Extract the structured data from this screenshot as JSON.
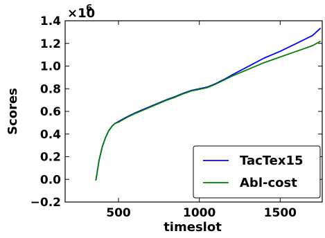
{
  "chart_data": {
    "type": "line",
    "xlabel": "timeslot",
    "ylabel": "Scores",
    "y_multiplier_label": "×10",
    "y_multiplier_exp": "6",
    "xlim": [
      170,
      1760
    ],
    "ylim": [
      -0.2,
      1.4
    ],
    "x_ticks": [
      500,
      1000,
      1500
    ],
    "x_tick_labels": [
      "500",
      "1000",
      "1500"
    ],
    "y_ticks": [
      -0.2,
      0.0,
      0.2,
      0.4,
      0.6,
      0.8,
      1.0,
      1.2,
      1.4
    ],
    "y_tick_labels": [
      "−0.2",
      "0.0",
      "0.2",
      "0.4",
      "0.6",
      "0.8",
      "1.0",
      "1.2",
      "1.4"
    ],
    "grid": false,
    "legend_position": "bottom-right",
    "series": [
      {
        "name": "TacTex15",
        "color": "#0000ff",
        "x": [
          360,
          370,
          380,
          400,
          420,
          440,
          460,
          480,
          500,
          550,
          600,
          650,
          700,
          750,
          800,
          850,
          900,
          950,
          1000,
          1050,
          1100,
          1150,
          1200,
          1300,
          1400,
          1500,
          1600,
          1700,
          1750
        ],
        "y": [
          -0.01,
          0.08,
          0.17,
          0.29,
          0.37,
          0.43,
          0.47,
          0.495,
          0.51,
          0.55,
          0.585,
          0.615,
          0.645,
          0.675,
          0.705,
          0.73,
          0.76,
          0.785,
          0.8,
          0.815,
          0.845,
          0.88,
          0.92,
          0.995,
          1.07,
          1.13,
          1.2,
          1.27,
          1.335
        ]
      },
      {
        "name": "Abl-cost",
        "color": "#008000",
        "x": [
          360,
          370,
          380,
          400,
          420,
          440,
          460,
          480,
          500,
          550,
          600,
          650,
          700,
          750,
          800,
          850,
          900,
          950,
          1000,
          1050,
          1100,
          1150,
          1200,
          1300,
          1400,
          1500,
          1600,
          1700,
          1750
        ],
        "y": [
          -0.01,
          0.08,
          0.17,
          0.29,
          0.37,
          0.43,
          0.47,
          0.495,
          0.505,
          0.545,
          0.58,
          0.61,
          0.64,
          0.67,
          0.7,
          0.725,
          0.755,
          0.78,
          0.795,
          0.81,
          0.84,
          0.875,
          0.91,
          0.97,
          1.03,
          1.08,
          1.13,
          1.18,
          1.22
        ]
      }
    ]
  }
}
